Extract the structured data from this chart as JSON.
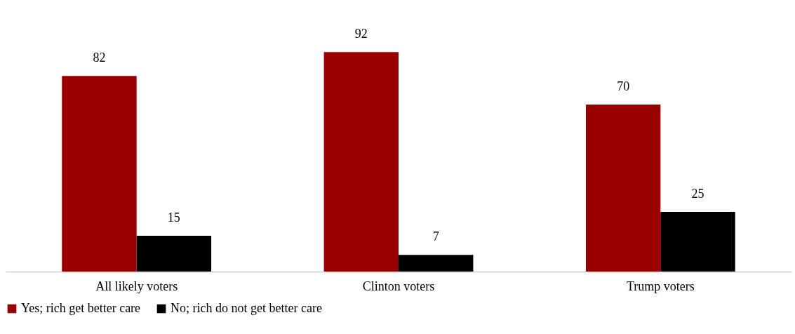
{
  "chart_data": {
    "type": "bar",
    "categories": [
      "All likely voters",
      "Clinton voters",
      "Trump voters"
    ],
    "series": [
      {
        "name": "Yes; rich get better care",
        "color": "#990000",
        "values": [
          82,
          92,
          70
        ]
      },
      {
        "name": "No; rich do not get better care",
        "color": "#000000",
        "values": [
          15,
          7,
          25
        ]
      }
    ],
    "data_labels": true,
    "legend": "bottom",
    "grid": false
  }
}
